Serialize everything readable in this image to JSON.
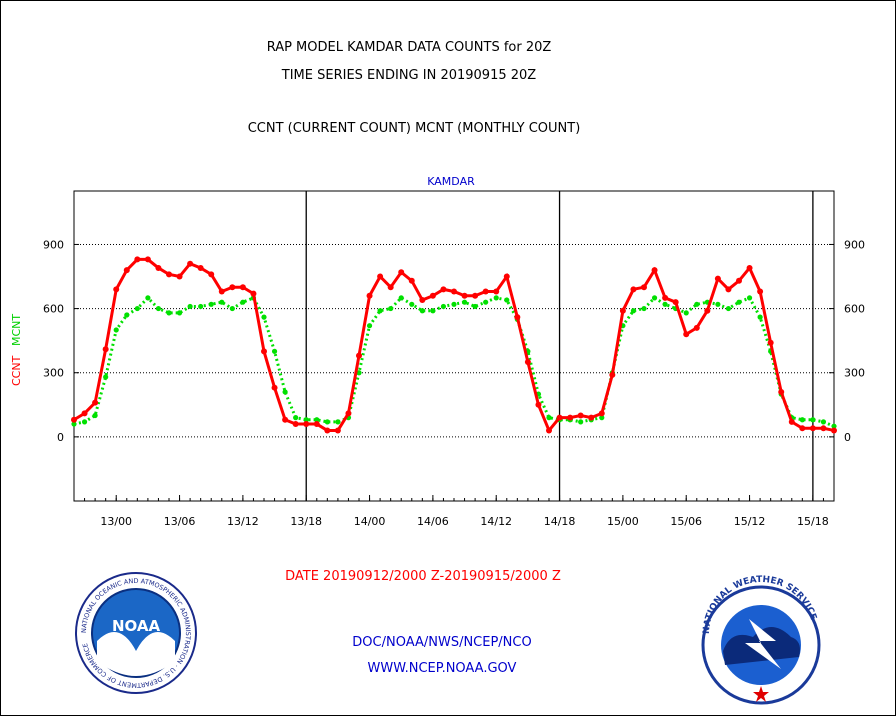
{
  "header": {
    "title_line1": "RAP MODEL KAMDAR DATA COUNTS for 20Z",
    "title_line2": "TIME SERIES ENDING IN 20190915 20Z",
    "subtitle": "CCNT (CURRENT COUNT) MCNT (MONTHLY COUNT)"
  },
  "footer": {
    "date_range": "DATE 20190912/2000 Z-20190915/2000 Z",
    "org_line": "DOC/NOAA/NWS/NCEP/NCO",
    "url_line": "WWW.NCEP.NOAA.GOV",
    "noaa_logo_text": "NOAA",
    "noaa_ring_text": "NATIONAL OCEANIC AND ATMOSPHERIC ADMINISTRATION · U.S. DEPARTMENT OF COMMERCE",
    "nws_ring_text": "NATIONAL WEATHER SERVICE"
  },
  "colors": {
    "ccnt": "#ff0000",
    "mcnt": "#00e000",
    "text": "#000000",
    "accent_blue": "#0000cc"
  },
  "chart_data": {
    "type": "line",
    "title": "KAMDAR",
    "ylabel_series": [
      "CCNT",
      "MCNT"
    ],
    "ylim": [
      -300,
      1150
    ],
    "yticks": [
      0,
      300,
      600,
      900
    ],
    "grid": true,
    "x_unit": "hours since 2019-09-12 20Z",
    "xlim": [
      0,
      72
    ],
    "xticks": [
      {
        "x": 4,
        "label": "13/00"
      },
      {
        "x": 10,
        "label": "13/06"
      },
      {
        "x": 16,
        "label": "13/12"
      },
      {
        "x": 22,
        "label": "13/18"
      },
      {
        "x": 28,
        "label": "14/00"
      },
      {
        "x": 34,
        "label": "14/06"
      },
      {
        "x": 40,
        "label": "14/12"
      },
      {
        "x": 46,
        "label": "14/18"
      },
      {
        "x": 52,
        "label": "15/00"
      },
      {
        "x": 58,
        "label": "15/06"
      },
      {
        "x": 64,
        "label": "15/12"
      },
      {
        "x": 70,
        "label": "15/18"
      }
    ],
    "day_boundaries": [
      22,
      46,
      70
    ],
    "x": [
      0,
      1,
      2,
      3,
      4,
      5,
      6,
      7,
      8,
      9,
      10,
      11,
      12,
      13,
      14,
      15,
      16,
      17,
      18,
      19,
      20,
      21,
      22,
      23,
      24,
      25,
      26,
      27,
      28,
      29,
      30,
      31,
      32,
      33,
      34,
      35,
      36,
      37,
      38,
      39,
      40,
      41,
      42,
      43,
      44,
      45,
      46,
      47,
      48,
      49,
      50,
      51,
      52,
      53,
      54,
      55,
      56,
      57,
      58,
      59,
      60,
      61,
      62,
      63,
      64,
      65,
      66,
      67,
      68,
      69,
      70,
      71,
      72
    ],
    "series": [
      {
        "name": "CCNT",
        "values": [
          80,
          110,
          160,
          410,
          690,
          780,
          830,
          830,
          790,
          760,
          750,
          810,
          790,
          760,
          680,
          700,
          700,
          670,
          400,
          230,
          80,
          60,
          60,
          60,
          30,
          30,
          110,
          380,
          660,
          750,
          700,
          770,
          730,
          640,
          660,
          690,
          680,
          660,
          660,
          680,
          680,
          750,
          560,
          350,
          150,
          30,
          90,
          90,
          100,
          90,
          110,
          290,
          590,
          690,
          700,
          780,
          650,
          630,
          480,
          510,
          590,
          740,
          690,
          730,
          790,
          680,
          440,
          210,
          70,
          40,
          40,
          40,
          30
        ]
      },
      {
        "name": "MCNT",
        "values": [
          60,
          70,
          100,
          280,
          500,
          570,
          600,
          650,
          600,
          580,
          580,
          610,
          610,
          620,
          630,
          600,
          630,
          650,
          560,
          400,
          210,
          90,
          80,
          80,
          70,
          70,
          90,
          300,
          520,
          590,
          600,
          650,
          620,
          590,
          590,
          610,
          620,
          630,
          610,
          630,
          650,
          640,
          550,
          400,
          200,
          90,
          80,
          80,
          70,
          80,
          90,
          300,
          520,
          590,
          600,
          650,
          620,
          600,
          580,
          620,
          630,
          620,
          600,
          630,
          650,
          560,
          400,
          200,
          90,
          80,
          80,
          70,
          50
        ]
      }
    ]
  }
}
